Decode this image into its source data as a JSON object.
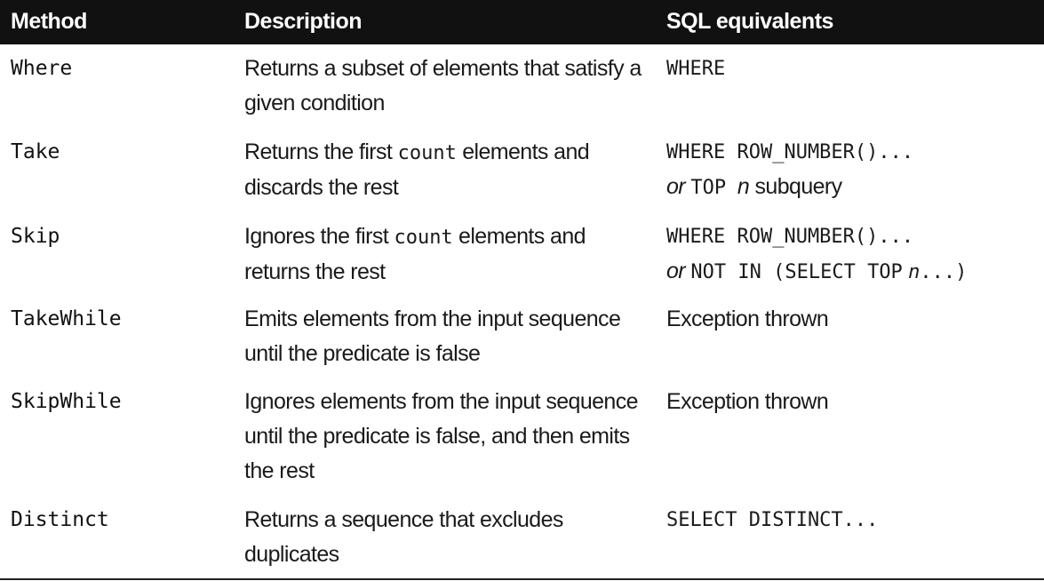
{
  "headers": {
    "method": "Method",
    "description": "Description",
    "sql": "SQL equivalents"
  },
  "rows": [
    {
      "method": "Where",
      "desc_line1": "Returns a subset of elements that satisfy a",
      "desc_line2": "given condition",
      "sql_line1": "WHERE"
    },
    {
      "method": "Take",
      "desc_pre": "Returns the first ",
      "desc_code": "count",
      "desc_post": " elements and",
      "desc_line2": "discards the rest",
      "sql_line1": "WHERE ROW_NUMBER()...",
      "sql_or": "or",
      "sql_line2_code": "TOP",
      "sql_line2_n": "n",
      "sql_line2_rest": "subquery"
    },
    {
      "method": "Skip",
      "desc_pre": "Ignores the first ",
      "desc_code": "count",
      "desc_post": " elements and",
      "desc_line2": "returns the rest",
      "sql_line1": "WHERE ROW_NUMBER()...",
      "sql_or": "or",
      "sql_line2_code": "NOT IN (SELECT TOP",
      "sql_line2_n": "n",
      "sql_line2_rest": "...)"
    },
    {
      "method": "TakeWhile",
      "desc_line1": "Emits elements from the input sequence",
      "desc_line2": "until the predicate is false",
      "sql_line1": "Exception thrown"
    },
    {
      "method": "SkipWhile",
      "desc_line1": "Ignores elements from the input sequence",
      "desc_line2": "until the predicate is false, and then emits",
      "desc_line3": "the rest",
      "sql_line1": "Exception thrown"
    },
    {
      "method": "Distinct",
      "desc_line1": "Returns a sequence that excludes",
      "desc_line2": "duplicates",
      "sql_line1": "SELECT DISTINCT..."
    }
  ]
}
